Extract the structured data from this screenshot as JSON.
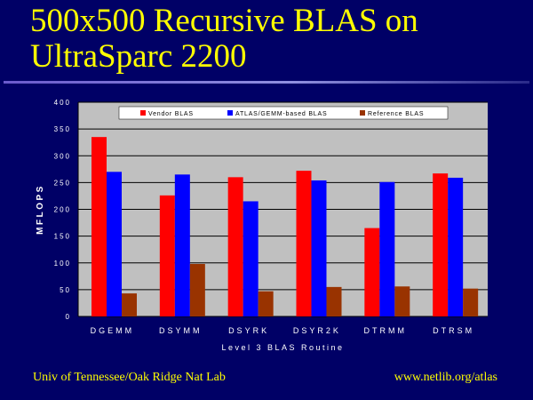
{
  "slide": {
    "title_line1": "500x500 Recursive BLAS on",
    "title_line2": "UltraSparc 2200",
    "footer_left": "Univ of Tennessee/Oak Ridge Nat Lab",
    "footer_right": "www.netlib.org/atlas"
  },
  "chart_data": {
    "type": "bar",
    "title": "",
    "xlabel": "Level 3 BLAS Routine",
    "ylabel": "MFLOPS",
    "ylim": [
      0,
      400
    ],
    "yticks": [
      0,
      50,
      100,
      150,
      200,
      250,
      300,
      350,
      400
    ],
    "grid": true,
    "legend_position": "top",
    "categories": [
      "DGEMM",
      "DSYMM",
      "DSYRK",
      "DSYR2K",
      "DTRMM",
      "DTRSM"
    ],
    "series": [
      {
        "name": "Vendor BLAS",
        "color": "#ff0000",
        "values": [
          335,
          226,
          260,
          272,
          165,
          267
        ]
      },
      {
        "name": "ATLAS/GEMM-based BLAS",
        "color": "#0000ff",
        "values": [
          270,
          265,
          215,
          254,
          251,
          259
        ]
      },
      {
        "name": "Reference BLAS",
        "color": "#993300",
        "values": [
          43,
          98,
          47,
          55,
          56,
          52
        ]
      }
    ],
    "colors": {
      "plot_background": "#c0c0c0",
      "legend_background": "#ffffff",
      "grid": "#000000",
      "axis_text": "#ffffff"
    }
  }
}
